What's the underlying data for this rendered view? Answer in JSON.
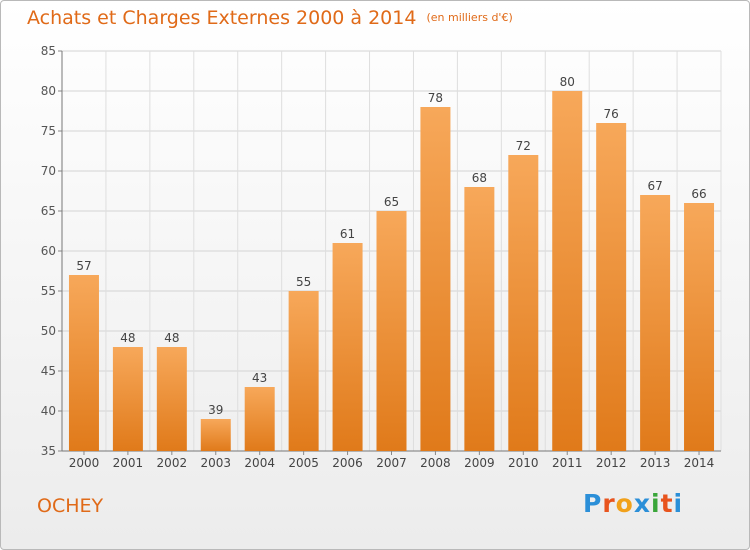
{
  "header": {
    "title": "Achats et Charges Externes 2000 à 2014",
    "unit": "(en milliers d'€)"
  },
  "footer": {
    "city": "OCHEY",
    "logo": {
      "letters": [
        "P",
        "r",
        "o",
        "x",
        "i",
        "t",
        "i"
      ],
      "colors": [
        "#2b8fd8",
        "#e8541e",
        "#f1a11b",
        "#2b8fd8",
        "#3aa63a",
        "#e8541e",
        "#2b8fd8"
      ]
    }
  },
  "chart_data": {
    "type": "bar",
    "categories": [
      "2000",
      "2001",
      "2002",
      "2003",
      "2004",
      "2005",
      "2006",
      "2007",
      "2008",
      "2009",
      "2010",
      "2011",
      "2012",
      "2013",
      "2014"
    ],
    "values": [
      57,
      48,
      48,
      39,
      43,
      55,
      61,
      65,
      78,
      68,
      72,
      80,
      76,
      67,
      66
    ],
    "ylim": [
      35,
      85
    ],
    "yticks": [
      35,
      40,
      45,
      50,
      55,
      60,
      65,
      70,
      75,
      80,
      85
    ],
    "grid": true,
    "bar_color": "#f0882a",
    "bar_color_light": "#f7a85a",
    "bar_color_dark": "#e07a1a"
  }
}
